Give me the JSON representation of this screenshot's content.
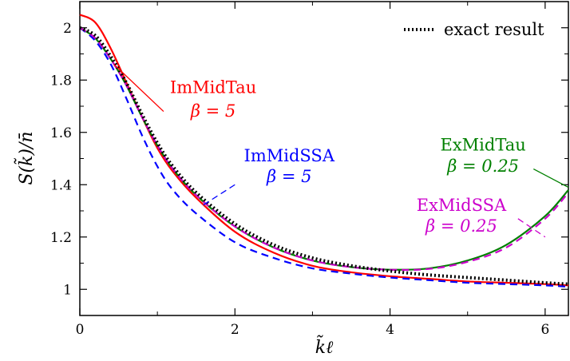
{
  "chart_data": {
    "type": "line",
    "xlabel": "k̃ℓ",
    "ylabel": "S(k̃)/n̄",
    "xlim": [
      0,
      6.3
    ],
    "ylim": [
      0.9,
      2.1
    ],
    "x_ticks": [
      "0",
      "2",
      "4",
      "6"
    ],
    "y_ticks": [
      "1",
      "1.2",
      "1.4",
      "1.6",
      "1.8",
      "2"
    ],
    "grid": false,
    "legend": {
      "position": "top-right",
      "entries": [
        "exact result"
      ]
    },
    "series": [
      {
        "name": "exact result",
        "style": "dotted",
        "color": "#000000",
        "x": [
          0,
          0.2,
          0.4,
          0.6,
          0.8,
          1.0,
          1.2,
          1.5,
          2.0,
          2.5,
          3.0,
          3.5,
          4.0,
          4.5,
          5.0,
          5.5,
          6.0,
          6.3
        ],
        "y": [
          2.0,
          1.97,
          1.89,
          1.79,
          1.67,
          1.56,
          1.47,
          1.37,
          1.25,
          1.17,
          1.12,
          1.09,
          1.07,
          1.055,
          1.045,
          1.035,
          1.025,
          1.02
        ]
      },
      {
        "name": "ImMidTau",
        "style": "solid",
        "color": "#ff0000",
        "x": [
          0,
          0.2,
          0.4,
          0.6,
          0.8,
          1.0,
          1.2,
          1.5,
          2.0,
          2.5,
          3.0,
          3.5,
          4.0,
          4.5,
          5.0,
          5.5,
          6.0,
          6.3
        ],
        "y": [
          2.05,
          2.02,
          1.92,
          1.79,
          1.66,
          1.54,
          1.45,
          1.35,
          1.22,
          1.14,
          1.09,
          1.065,
          1.05,
          1.04,
          1.03,
          1.025,
          1.02,
          1.015
        ]
      },
      {
        "name": "ImMidSSA",
        "style": "dashed",
        "color": "#0000ff",
        "x": [
          0,
          0.2,
          0.4,
          0.6,
          0.8,
          1.0,
          1.2,
          1.5,
          2.0,
          2.5,
          3.0,
          3.5,
          4.0,
          4.5,
          5.0,
          5.5,
          6.0,
          6.3
        ],
        "y": [
          2.0,
          1.95,
          1.86,
          1.73,
          1.59,
          1.47,
          1.38,
          1.29,
          1.18,
          1.12,
          1.08,
          1.06,
          1.045,
          1.035,
          1.025,
          1.02,
          1.015,
          1.01
        ]
      },
      {
        "name": "ExMidTau",
        "style": "solid",
        "color": "#008000",
        "x": [
          0,
          0.2,
          0.4,
          0.6,
          0.8,
          1.0,
          1.2,
          1.5,
          2.0,
          2.5,
          3.0,
          3.5,
          4.0,
          4.5,
          5.0,
          5.5,
          6.0,
          6.3
        ],
        "y": [
          2.0,
          1.96,
          1.88,
          1.78,
          1.66,
          1.55,
          1.46,
          1.36,
          1.24,
          1.16,
          1.11,
          1.085,
          1.075,
          1.08,
          1.11,
          1.17,
          1.28,
          1.38
        ]
      },
      {
        "name": "ExMidSSA",
        "style": "dashed",
        "color": "#cc00cc",
        "x": [
          0,
          0.2,
          0.4,
          0.6,
          0.8,
          1.0,
          1.2,
          1.5,
          2.0,
          2.5,
          3.0,
          3.5,
          4.0,
          4.5,
          5.0,
          5.5,
          6.0,
          6.3
        ],
        "y": [
          2.0,
          1.96,
          1.88,
          1.78,
          1.66,
          1.55,
          1.46,
          1.36,
          1.24,
          1.16,
          1.11,
          1.085,
          1.075,
          1.078,
          1.105,
          1.16,
          1.27,
          1.37
        ]
      }
    ],
    "annotations": [
      {
        "name": "ImMidTau",
        "beta": "β = 5",
        "color": "#ff0000",
        "text_x": 1.72,
        "text_y": 1.75,
        "beta_y": 1.66,
        "line_from": [
          1.08,
          1.68
        ],
        "line_to": [
          0.44,
          1.86
        ],
        "line_style": "solid"
      },
      {
        "name": "ImMidSSA",
        "beta": "β = 5",
        "color": "#0000ff",
        "text_x": 2.7,
        "text_y": 1.49,
        "beta_y": 1.41,
        "line_from": [
          2.0,
          1.4
        ],
        "line_to": [
          1.58,
          1.32
        ],
        "line_style": "dashed"
      },
      {
        "name": "ExMidTau",
        "beta": "β = 0.25",
        "color": "#008000",
        "text_x": 5.2,
        "text_y": 1.53,
        "beta_y": 1.45,
        "line_from": [
          5.85,
          1.46
        ],
        "line_to": [
          6.3,
          1.39
        ],
        "line_style": "solid"
      },
      {
        "name": "ExMidSSA",
        "beta": "β = 0.25",
        "color": "#cc00cc",
        "text_x": 4.92,
        "text_y": 1.3,
        "beta_y": 1.22,
        "line_from": [
          5.65,
          1.27
        ],
        "line_to": [
          6.0,
          1.2
        ],
        "line_style": "dashed"
      }
    ]
  }
}
